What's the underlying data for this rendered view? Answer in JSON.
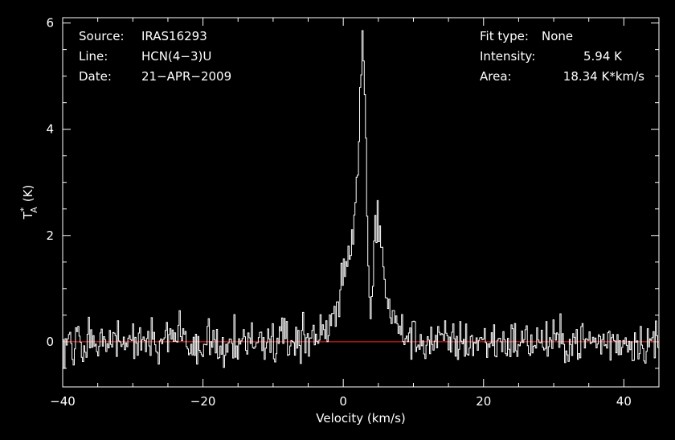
{
  "chart_data": {
    "type": "line",
    "title": "",
    "xlabel": "Velocity (km/s)",
    "ylabel": "T",
    "ylabel_sup": "*",
    "ylabel_sub": "A",
    "ylabel_unit": "(K)",
    "xlim": [
      -40,
      45
    ],
    "ylim": [
      -0.85,
      6.1
    ],
    "xticks": [
      -40,
      -20,
      0,
      20,
      40
    ],
    "yticks": [
      0,
      2,
      4,
      6
    ],
    "xtick_labels": [
      "−40",
      "−20",
      "0",
      "20",
      "40"
    ],
    "ytick_labels": [
      "0",
      "2",
      "4",
      "6"
    ],
    "grid": false,
    "series": [
      {
        "color": "#ffffff",
        "x": [
          -40,
          -38,
          -36,
          -34,
          -32,
          -30,
          -28,
          -26,
          -24,
          -22,
          -20,
          -18,
          -16,
          -14,
          -12,
          -10,
          -8,
          -6,
          -4,
          -3,
          -2,
          -1,
          0,
          0.5,
          1,
          1.5,
          2,
          2.3,
          2.6,
          2.9,
          3.1,
          3.3,
          3.5,
          3.7,
          4,
          4.3,
          4.6,
          4.9,
          5.2,
          5.5,
          5.8,
          6.2,
          6.6,
          7,
          7.5,
          8,
          9,
          10,
          11,
          12,
          14,
          16,
          18,
          20,
          22,
          24,
          26,
          28,
          30,
          32,
          34,
          36,
          38,
          40,
          42,
          44.5
        ],
        "y": [
          0,
          0,
          0,
          0,
          0,
          0,
          0,
          0,
          0,
          0,
          0,
          0,
          0,
          0,
          0,
          0,
          0.02,
          0.05,
          0.1,
          0.2,
          0.4,
          0.7,
          1.1,
          1.4,
          1.8,
          2.2,
          3.2,
          4.5,
          5.94,
          5.2,
          4.3,
          3.1,
          1.3,
          0.2,
          0.9,
          1.8,
          2.4,
          2.1,
          1.7,
          1.6,
          1.3,
          0.85,
          0.6,
          0.4,
          0.3,
          0.2,
          0.12,
          0.05,
          0.02,
          0,
          0,
          0,
          0,
          0,
          0,
          0,
          0,
          0,
          0,
          0,
          0,
          0,
          0,
          0,
          0,
          0
        ]
      }
    ],
    "baseline": {
      "y": 0,
      "color": "#ff2020"
    }
  },
  "annotations": {
    "source_label": "Source:",
    "source_value": "IRAS16293",
    "line_label": "Line:",
    "line_value": "HCN(4−3)U",
    "date_label": "Date:",
    "date_value": "21−APR−2009",
    "fit_label": "Fit type:",
    "fit_value": "None",
    "intensity_label": "Intensity:",
    "intensity_value": "5.94 K",
    "area_label": "Area:",
    "area_value": "18.34 K*km/s"
  }
}
